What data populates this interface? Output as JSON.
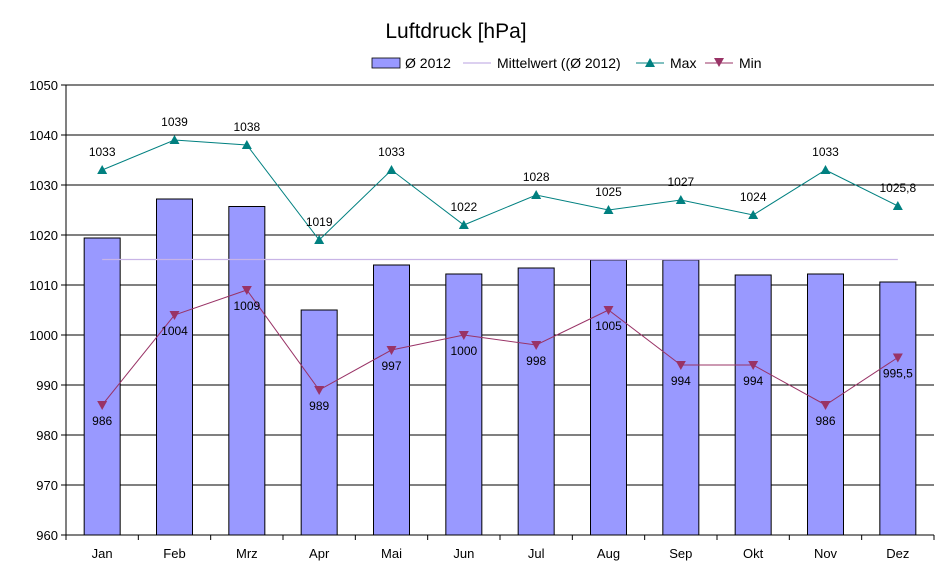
{
  "chart_data": {
    "type": "bar",
    "title": "Luftdruck [hPa]",
    "xlabel": "",
    "ylabel": "",
    "ylim": [
      960,
      1050
    ],
    "yticks": [
      960,
      970,
      980,
      990,
      1000,
      1010,
      1020,
      1030,
      1040,
      1050
    ],
    "grid": true,
    "legend_position": "top",
    "categories": [
      "Jan",
      "Feb",
      "Mrz",
      "Apr",
      "Mai",
      "Jun",
      "Jul",
      "Aug",
      "Sep",
      "Okt",
      "Nov",
      "Dez"
    ],
    "series": [
      {
        "name": "Ø 2012",
        "type": "bar",
        "color": "#9999ff",
        "values": [
          1019.4,
          1027.2,
          1025.7,
          1005.0,
          1014.0,
          1012.2,
          1013.4,
          1015.0,
          1015.0,
          1012.0,
          1012.2,
          1010.6
        ]
      },
      {
        "name": "Mittelwert ((Ø 2012)",
        "type": "hline",
        "color": "#c8b4e6",
        "value": 1015.1
      },
      {
        "name": "Max",
        "type": "line",
        "marker": "triangle-up",
        "color": "#008080",
        "values": [
          1033,
          1039,
          1038,
          1019,
          1033,
          1022,
          1028,
          1025,
          1027,
          1024,
          1033,
          1025.8
        ],
        "labels": [
          "1033",
          "1039",
          "1038",
          "1019",
          "1033",
          "1022",
          "1028",
          "1025",
          "1027",
          "1024",
          "1033",
          "1025,8"
        ]
      },
      {
        "name": "Min",
        "type": "line",
        "marker": "triangle-down",
        "color": "#993366",
        "values": [
          986,
          1004,
          1009,
          989,
          997,
          1000,
          998,
          1005,
          994,
          994,
          986,
          995.5
        ],
        "labels": [
          "986",
          "1004",
          "1009",
          "989",
          "997",
          "1000",
          "998",
          "1005",
          "994",
          "994",
          "986",
          "995,5"
        ]
      }
    ]
  }
}
